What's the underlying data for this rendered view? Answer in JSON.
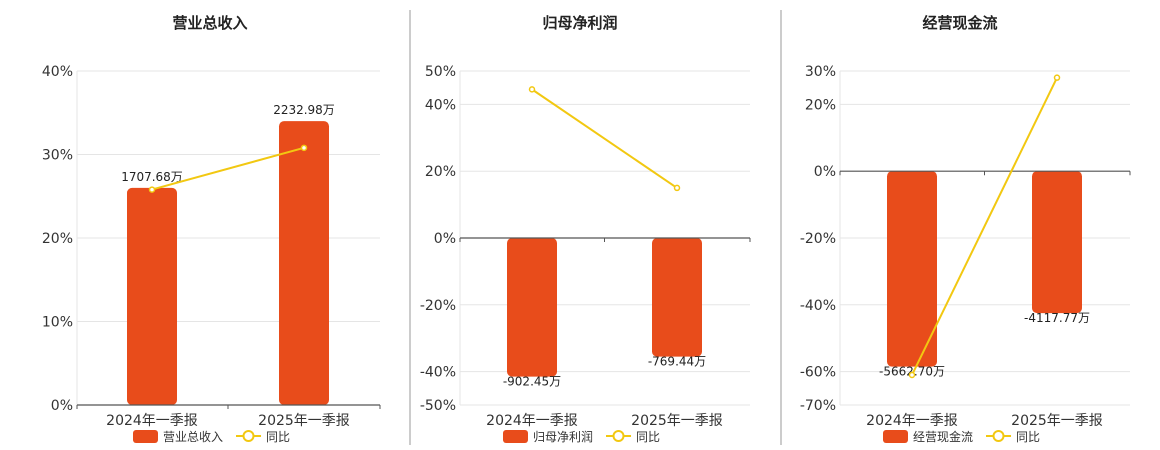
{
  "chart_data": [
    {
      "type": "bar",
      "title": "营业总收入",
      "categories": [
        "2024年一季报",
        "2025年一季报"
      ],
      "bar_values_pct": [
        26,
        34
      ],
      "bar_labels": [
        "1707.68万",
        "2232.98万"
      ],
      "yoy_pct": [
        25.8,
        30.8
      ],
      "ylim": [
        0,
        40
      ],
      "yticks": [
        0,
        10,
        20,
        30,
        40
      ],
      "ytick_labels": [
        "0%",
        "10%",
        "20%",
        "30%",
        "40%"
      ],
      "legend": [
        "营业总收入",
        "同比"
      ]
    },
    {
      "type": "bar",
      "title": "归母净利润",
      "categories": [
        "2024年一季报",
        "2025年一季报"
      ],
      "bar_values_pct": [
        -41.5,
        -35.5
      ],
      "bar_labels": [
        "-902.45万",
        "-769.44万"
      ],
      "yoy_pct": [
        44.5,
        15
      ],
      "ylim": [
        -50,
        50
      ],
      "yticks": [
        -50,
        -40,
        -20,
        0,
        20,
        40,
        50
      ],
      "ytick_labels": [
        "-50%",
        "-40%",
        "-20%",
        "0%",
        "20%",
        "40%",
        "50%"
      ],
      "legend": [
        "归母净利润",
        "同比"
      ]
    },
    {
      "type": "bar",
      "title": "经营现金流",
      "categories": [
        "2024年一季报",
        "2025年一季报"
      ],
      "bar_values_pct": [
        -58.5,
        -42.5
      ],
      "bar_labels": [
        "-5662.70万",
        "-4117.77万"
      ],
      "yoy_pct": [
        -61,
        28
      ],
      "ylim": [
        -70,
        30
      ],
      "yticks": [
        -70,
        -60,
        -40,
        -20,
        0,
        20,
        30
      ],
      "ytick_labels": [
        "-70%",
        "-60%",
        "-40%",
        "-20%",
        "0%",
        "20%",
        "30%"
      ],
      "legend": [
        "经营现金流",
        "同比"
      ]
    }
  ],
  "colors": {
    "bar": "#e84c1b",
    "line": "#f2c811",
    "grid": "#e5e5e5",
    "axis": "#555555",
    "divider": "#999999"
  }
}
